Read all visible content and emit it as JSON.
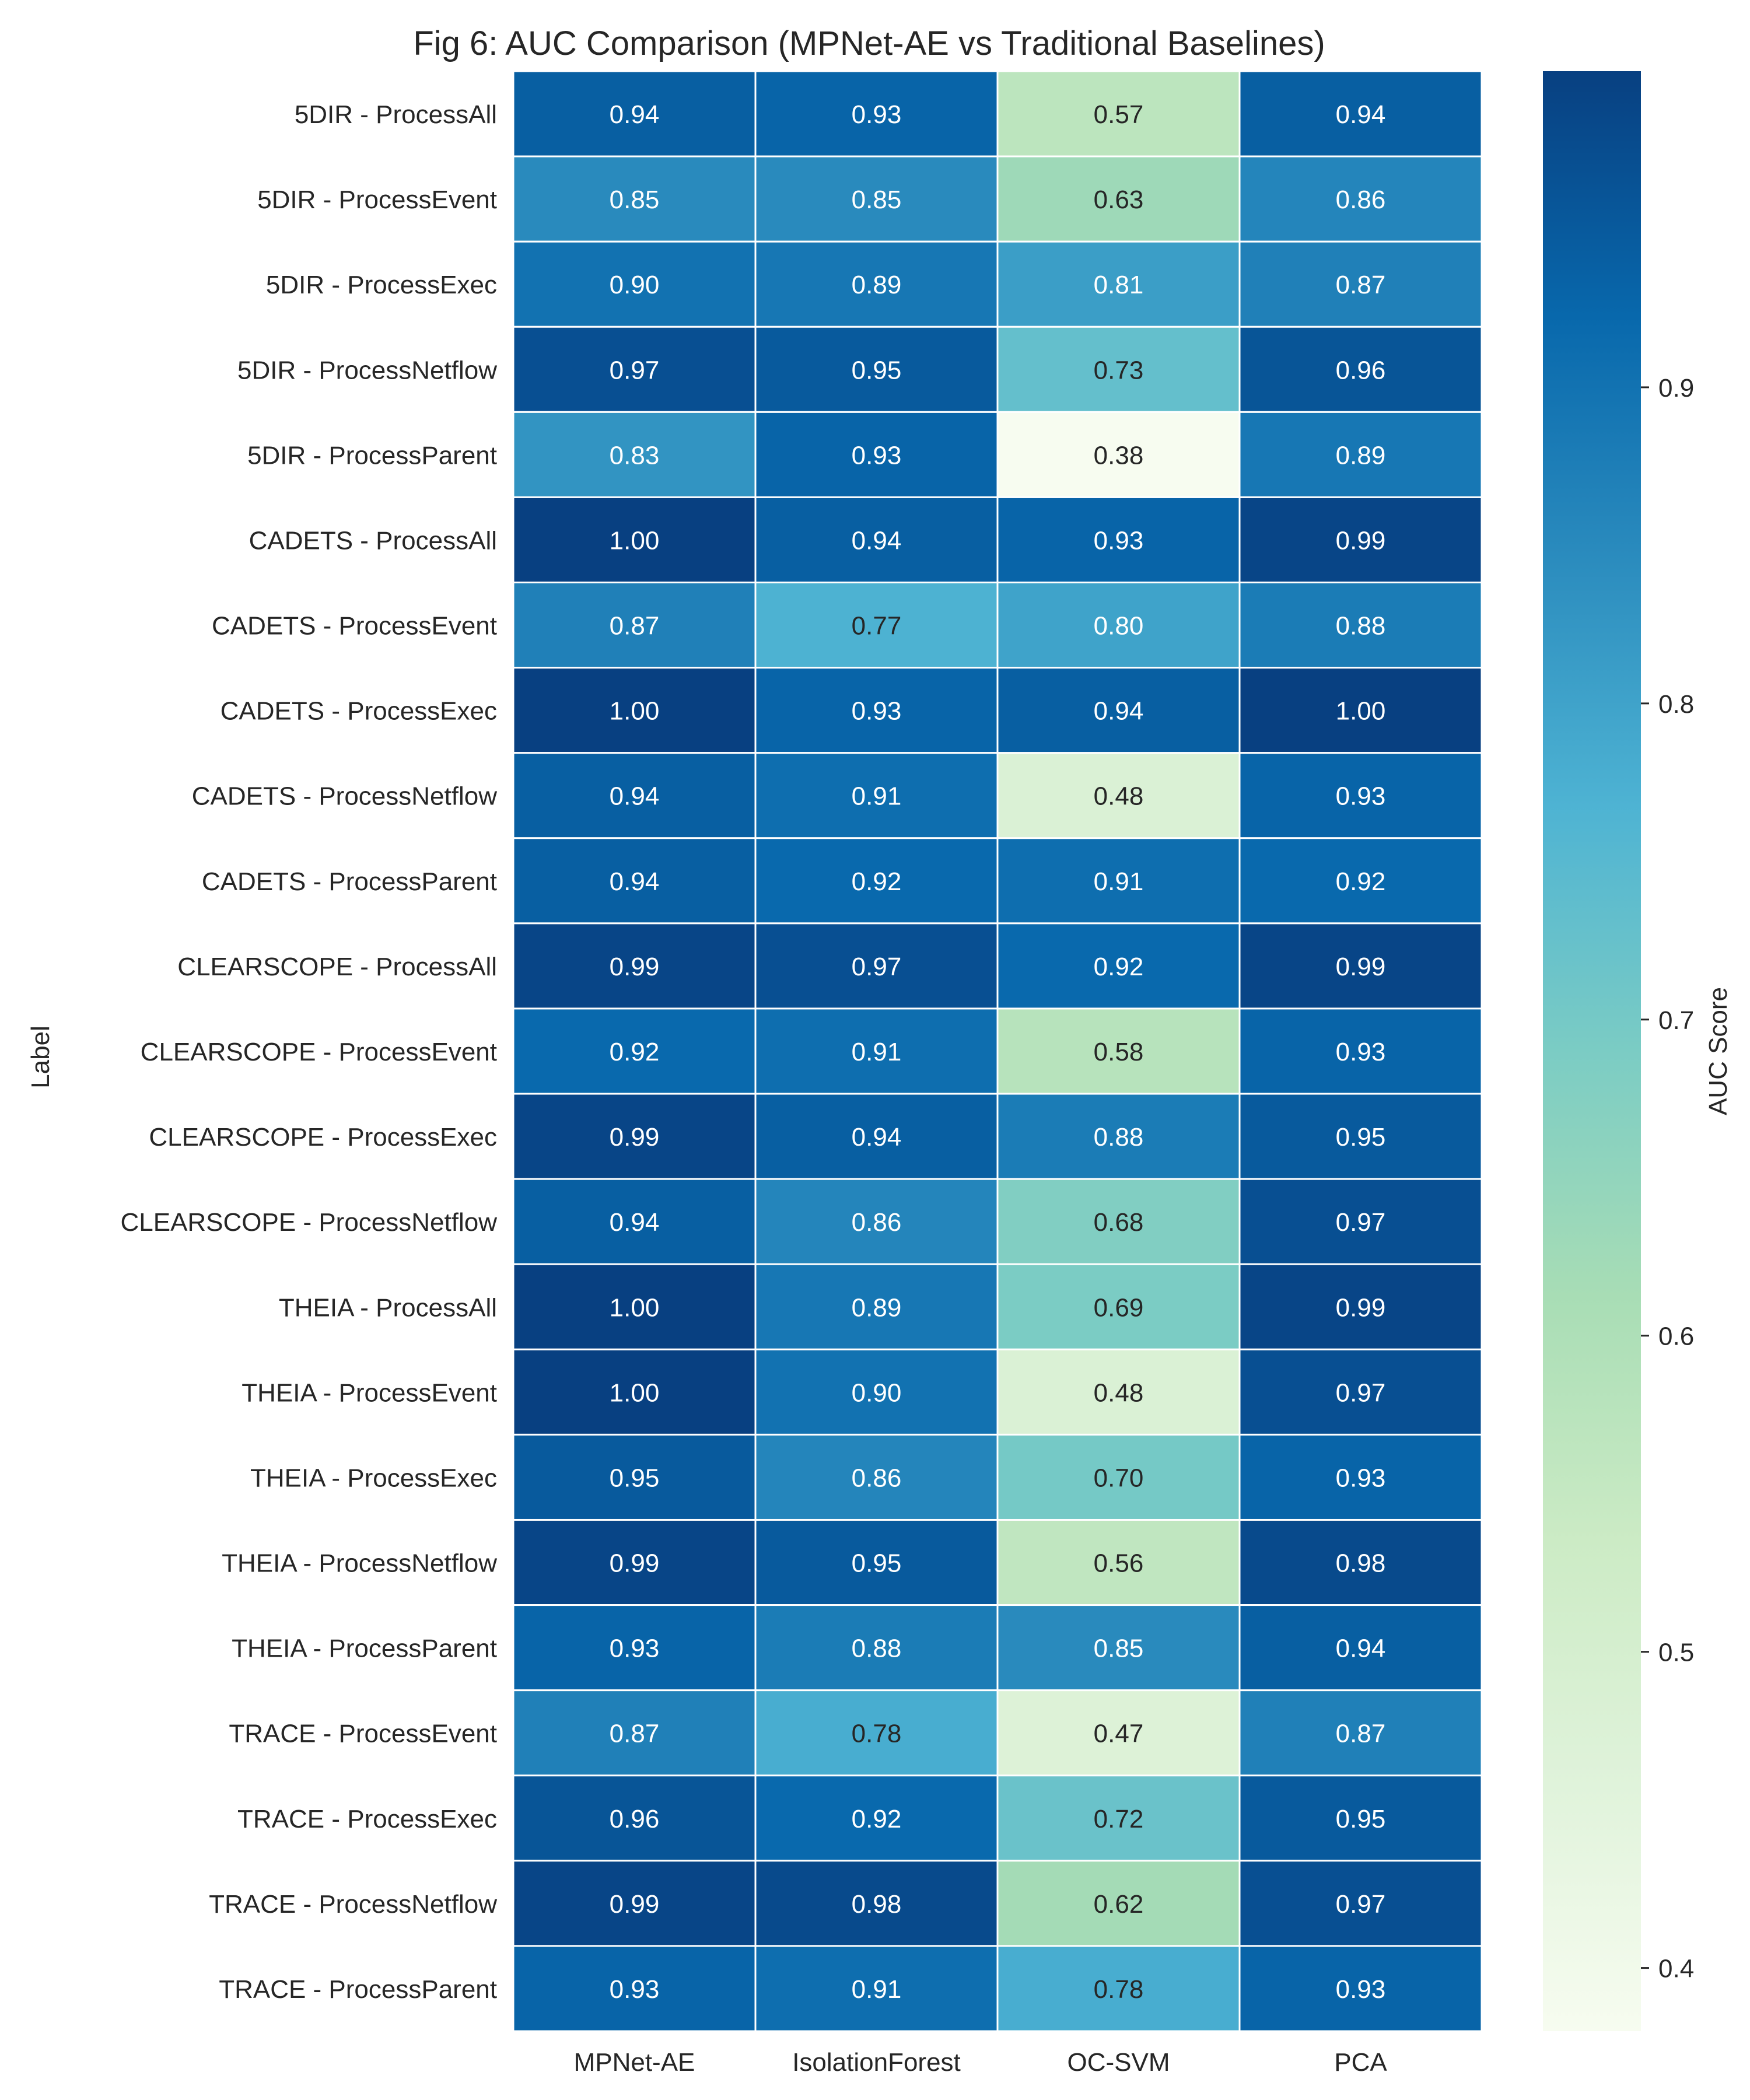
{
  "chart_data": {
    "type": "heatmap",
    "title": "Fig 6: AUC Comparison (MPNet-AE vs Traditional Baselines)",
    "ylabel": "Label",
    "xlabel": "",
    "columns": [
      "MPNet-AE",
      "IsolationForest",
      "OC-SVM",
      "PCA"
    ],
    "rows": [
      "5DIR - ProcessAll",
      "5DIR - ProcessEvent",
      "5DIR - ProcessExec",
      "5DIR - ProcessNetflow",
      "5DIR - ProcessParent",
      "CADETS - ProcessAll",
      "CADETS - ProcessEvent",
      "CADETS - ProcessExec",
      "CADETS - ProcessNetflow",
      "CADETS - ProcessParent",
      "CLEARSCOPE - ProcessAll",
      "CLEARSCOPE - ProcessEvent",
      "CLEARSCOPE - ProcessExec",
      "CLEARSCOPE - ProcessNetflow",
      "THEIA - ProcessAll",
      "THEIA - ProcessEvent",
      "THEIA - ProcessExec",
      "THEIA - ProcessNetflow",
      "THEIA - ProcessParent",
      "TRACE - ProcessEvent",
      "TRACE - ProcessExec",
      "TRACE - ProcessNetflow",
      "TRACE - ProcessParent"
    ],
    "values": [
      [
        0.94,
        0.93,
        0.57,
        0.94
      ],
      [
        0.85,
        0.85,
        0.63,
        0.86
      ],
      [
        0.9,
        0.89,
        0.81,
        0.87
      ],
      [
        0.97,
        0.95,
        0.73,
        0.96
      ],
      [
        0.83,
        0.93,
        0.38,
        0.89
      ],
      [
        1.0,
        0.94,
        0.93,
        0.99
      ],
      [
        0.87,
        0.77,
        0.8,
        0.88
      ],
      [
        1.0,
        0.93,
        0.94,
        1.0
      ],
      [
        0.94,
        0.91,
        0.48,
        0.93
      ],
      [
        0.94,
        0.92,
        0.91,
        0.92
      ],
      [
        0.99,
        0.97,
        0.92,
        0.99
      ],
      [
        0.92,
        0.91,
        0.58,
        0.93
      ],
      [
        0.99,
        0.94,
        0.88,
        0.95
      ],
      [
        0.94,
        0.86,
        0.68,
        0.97
      ],
      [
        1.0,
        0.89,
        0.69,
        0.99
      ],
      [
        1.0,
        0.9,
        0.48,
        0.97
      ],
      [
        0.95,
        0.86,
        0.7,
        0.93
      ],
      [
        0.99,
        0.95,
        0.56,
        0.98
      ],
      [
        0.93,
        0.88,
        0.85,
        0.94
      ],
      [
        0.87,
        0.78,
        0.47,
        0.87
      ],
      [
        0.96,
        0.92,
        0.72,
        0.95
      ],
      [
        0.99,
        0.98,
        0.62,
        0.97
      ],
      [
        0.93,
        0.91,
        0.78,
        0.93
      ]
    ],
    "value_format": "0.00",
    "colormap": "GnBu",
    "colorbar": {
      "label": "AUC Score",
      "range": [
        0.38,
        1.0
      ],
      "ticks": [
        0.4,
        0.5,
        0.6,
        0.7,
        0.8,
        0.9
      ],
      "tick_labels": [
        "0.4",
        "0.5",
        "0.6",
        "0.7",
        "0.8",
        "0.9"
      ],
      "placement": "right"
    },
    "text_color_light": "#ffffff",
    "text_color_dark": "#262626",
    "cell_border_color": "#ffffff",
    "colormap_stops": [
      "#f7fcf0",
      "#e0f3db",
      "#ccebc5",
      "#a8ddb5",
      "#7bccc4",
      "#4eb3d3",
      "#2b8cbe",
      "#0868ac",
      "#084081"
    ]
  }
}
